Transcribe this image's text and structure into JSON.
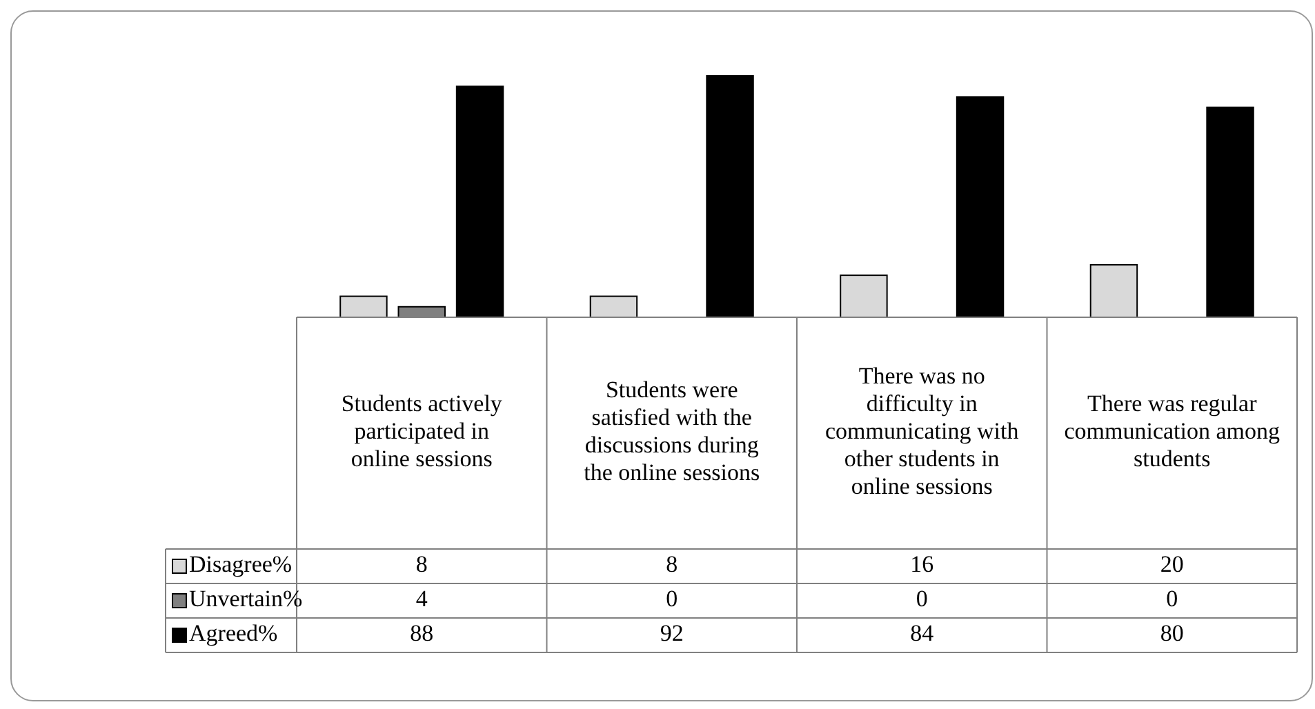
{
  "chart_data": {
    "type": "bar",
    "categories": [
      "Students actively participated in online sessions",
      "Students were satisfied with the discussions during the online sessions",
      "There was no difficulty in communicating with other students in online sessions",
      "There was regular communication among students"
    ],
    "series": [
      {
        "name": "Disagree%",
        "color": "#d9d9d9",
        "values": [
          8,
          8,
          16,
          20
        ]
      },
      {
        "name": "Unvertain%",
        "color": "#808080",
        "values": [
          4,
          0,
          0,
          0
        ]
      },
      {
        "name": "Agreed%",
        "color": "#000000",
        "values": [
          88,
          92,
          84,
          80
        ]
      }
    ],
    "data_labels": true,
    "legend": "bottom"
  }
}
